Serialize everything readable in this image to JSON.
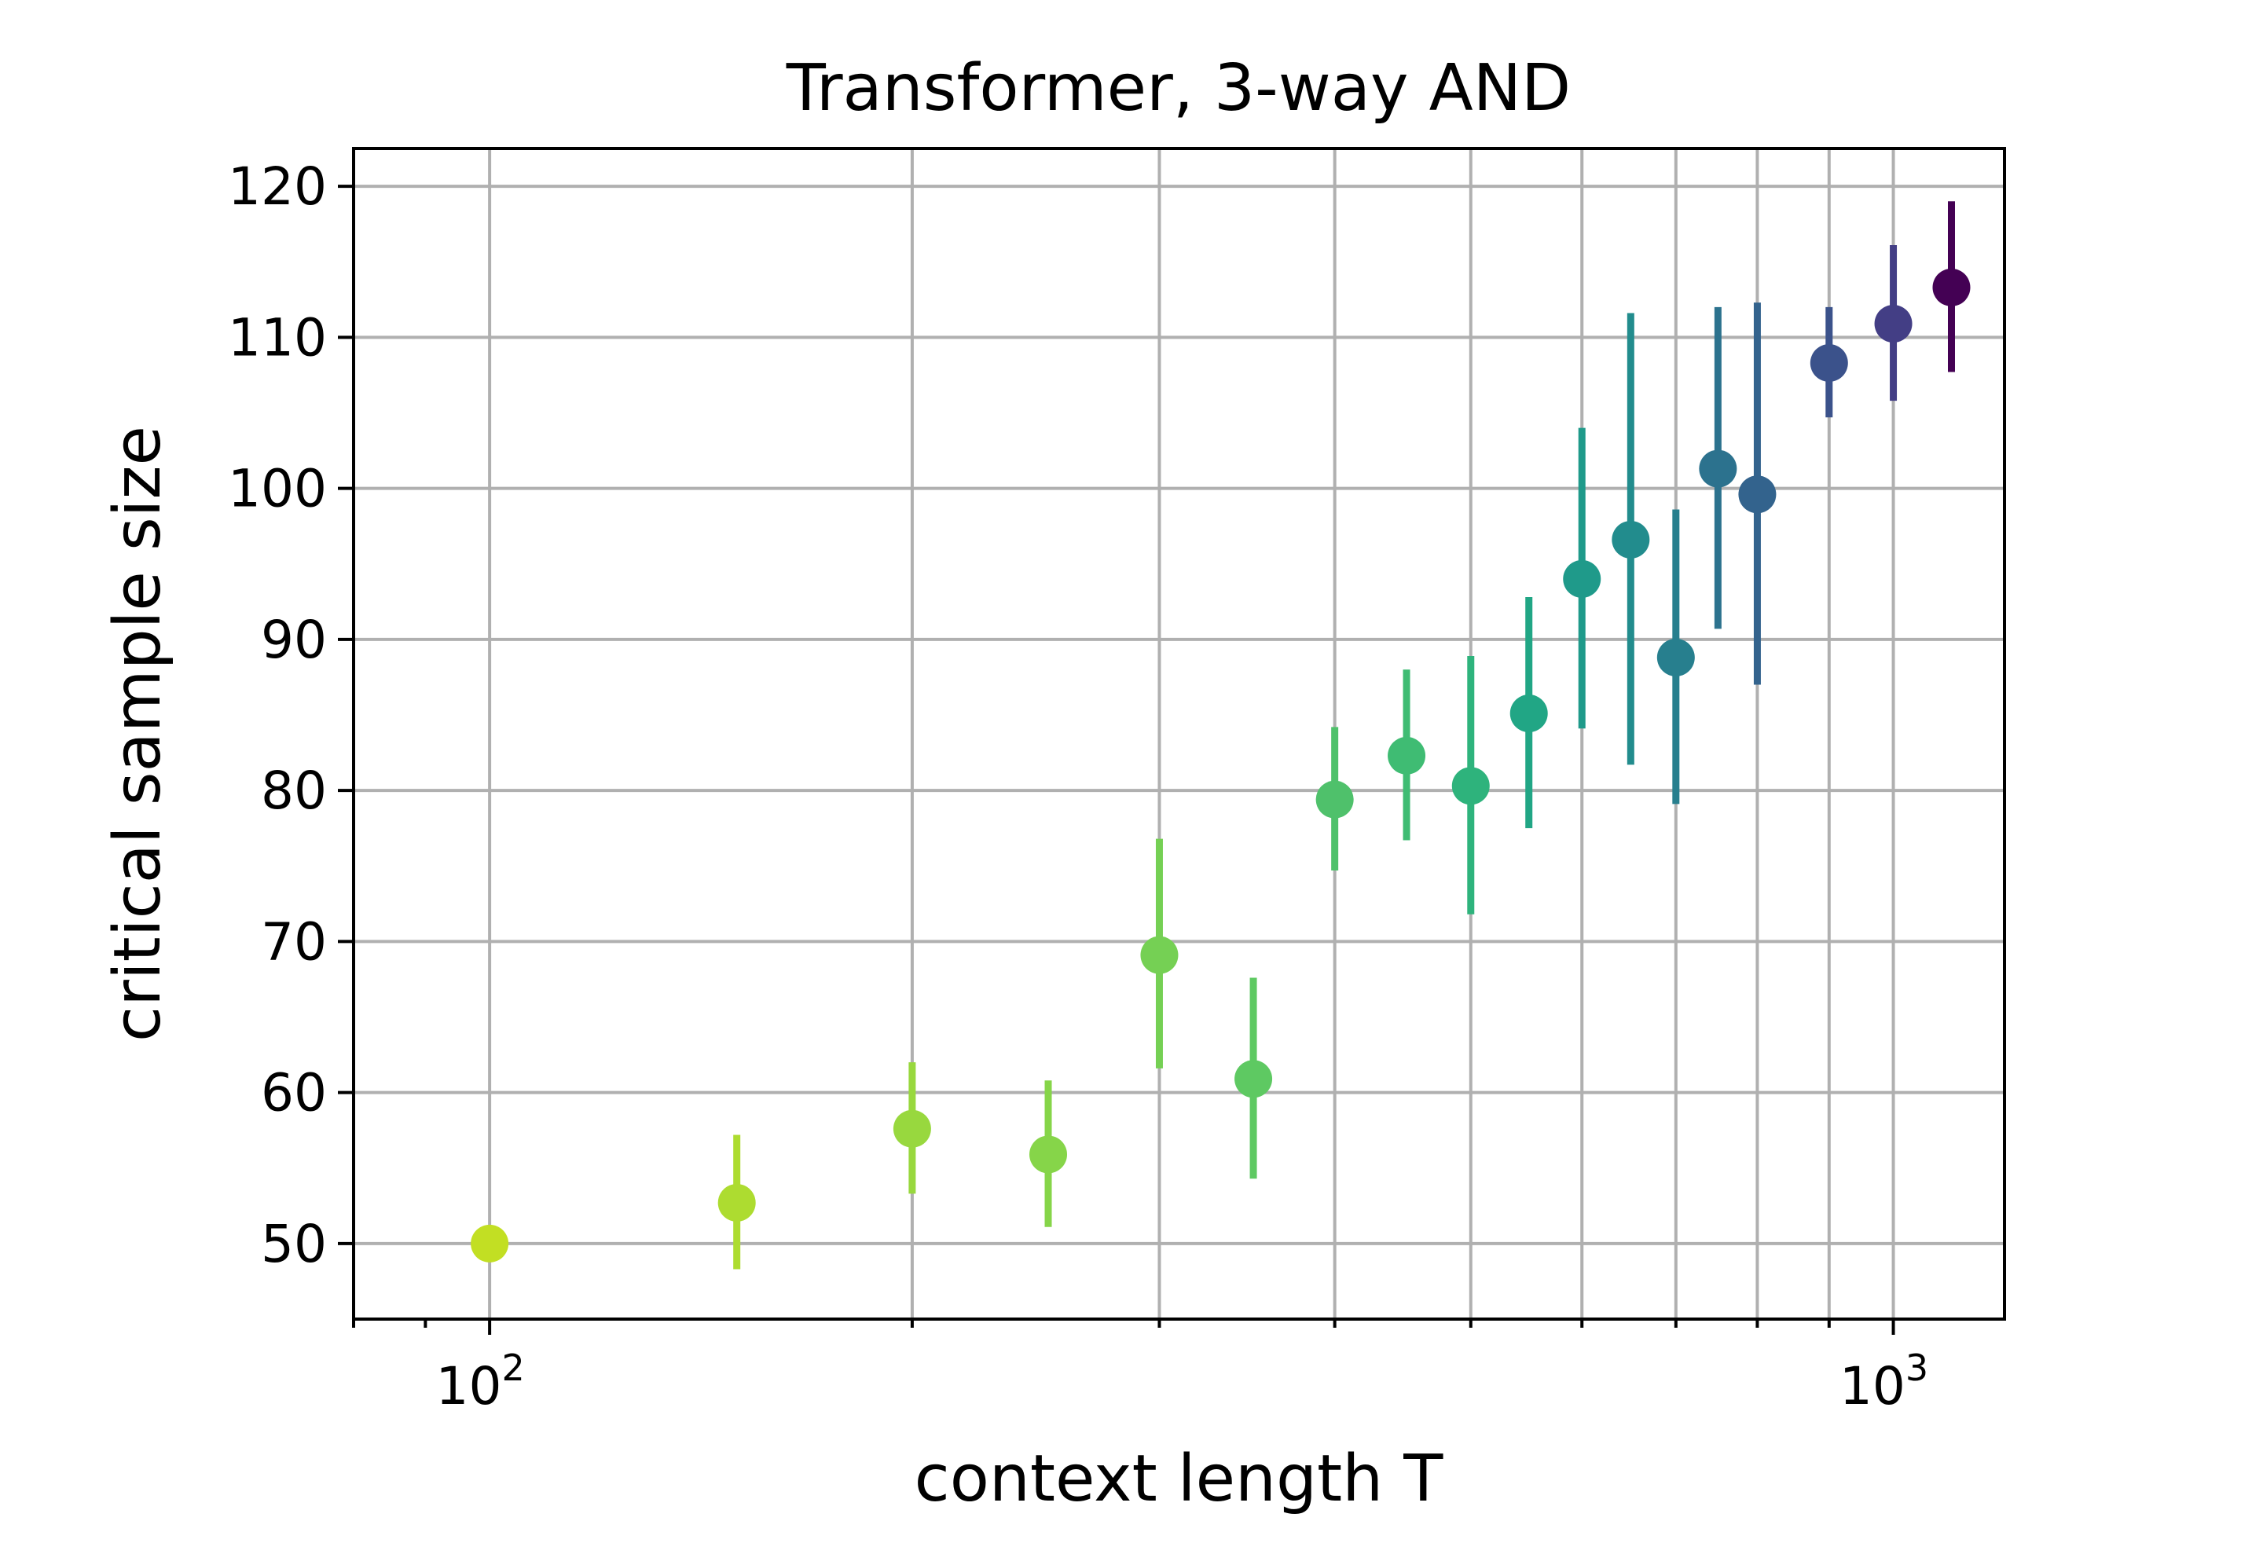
{
  "chart_data": {
    "type": "scatter",
    "title": "Transformer, 3-way AND",
    "xlabel": "context length T",
    "ylabel": "critical sample size",
    "xscale": "log",
    "xlim": [
      80,
      1200
    ],
    "ylim": [
      45,
      122.5
    ],
    "grid": true,
    "x_ticks": [
      {
        "value": 100,
        "base": "10",
        "exp": "2"
      },
      {
        "value": 1000,
        "base": "10",
        "exp": "3"
      }
    ],
    "x_gridlines": [
      100,
      200,
      300,
      400,
      500,
      600,
      700,
      800,
      900,
      1000
    ],
    "y_ticks": [
      50,
      60,
      70,
      80,
      90,
      100,
      110,
      120
    ],
    "colormap": "viridis (reversed, light-green at small T to dark-purple at large T)",
    "points": [
      {
        "x": 100,
        "y": 50.0,
        "err_low": 50.0,
        "err_high": 50.0,
        "color": "#c2df23"
      },
      {
        "x": 150,
        "y": 52.7,
        "err_low": 48.3,
        "err_high": 57.2,
        "color": "#addc30"
      },
      {
        "x": 200,
        "y": 57.6,
        "err_low": 53.3,
        "err_high": 62.0,
        "color": "#98d83e"
      },
      {
        "x": 250,
        "y": 55.9,
        "err_low": 51.1,
        "err_high": 60.8,
        "color": "#86d549"
      },
      {
        "x": 300,
        "y": 69.1,
        "err_low": 61.6,
        "err_high": 76.8,
        "color": "#75d054"
      },
      {
        "x": 350,
        "y": 60.9,
        "err_low": 54.3,
        "err_high": 67.6,
        "color": "#5ec962"
      },
      {
        "x": 400,
        "y": 79.4,
        "err_low": 74.7,
        "err_high": 84.2,
        "color": "#4fc16b"
      },
      {
        "x": 450,
        "y": 82.3,
        "err_low": 76.7,
        "err_high": 88.0,
        "color": "#3fbc73"
      },
      {
        "x": 500,
        "y": 80.3,
        "err_low": 71.8,
        "err_high": 88.9,
        "color": "#2eb37c"
      },
      {
        "x": 550,
        "y": 85.1,
        "err_low": 77.5,
        "err_high": 92.8,
        "color": "#21a685"
      },
      {
        "x": 600,
        "y": 94.0,
        "err_low": 84.1,
        "err_high": 104.0,
        "color": "#1f9a8a"
      },
      {
        "x": 650,
        "y": 96.6,
        "err_low": 81.7,
        "err_high": 111.6,
        "color": "#228c8d"
      },
      {
        "x": 700,
        "y": 88.8,
        "err_low": 79.1,
        "err_high": 98.6,
        "color": "#277f8e"
      },
      {
        "x": 750,
        "y": 101.3,
        "err_low": 90.7,
        "err_high": 112.0,
        "color": "#2c728e"
      },
      {
        "x": 800,
        "y": 99.6,
        "err_low": 87.0,
        "err_high": 112.3,
        "color": "#33638d"
      },
      {
        "x": 900,
        "y": 108.3,
        "err_low": 104.7,
        "err_high": 112.0,
        "color": "#3b528b"
      },
      {
        "x": 1000,
        "y": 110.9,
        "err_low": 105.8,
        "err_high": 116.1,
        "color": "#433e85"
      },
      {
        "x": 1100,
        "y": 113.3,
        "err_low": 107.7,
        "err_high": 119.0,
        "color": "#440154"
      }
    ]
  }
}
